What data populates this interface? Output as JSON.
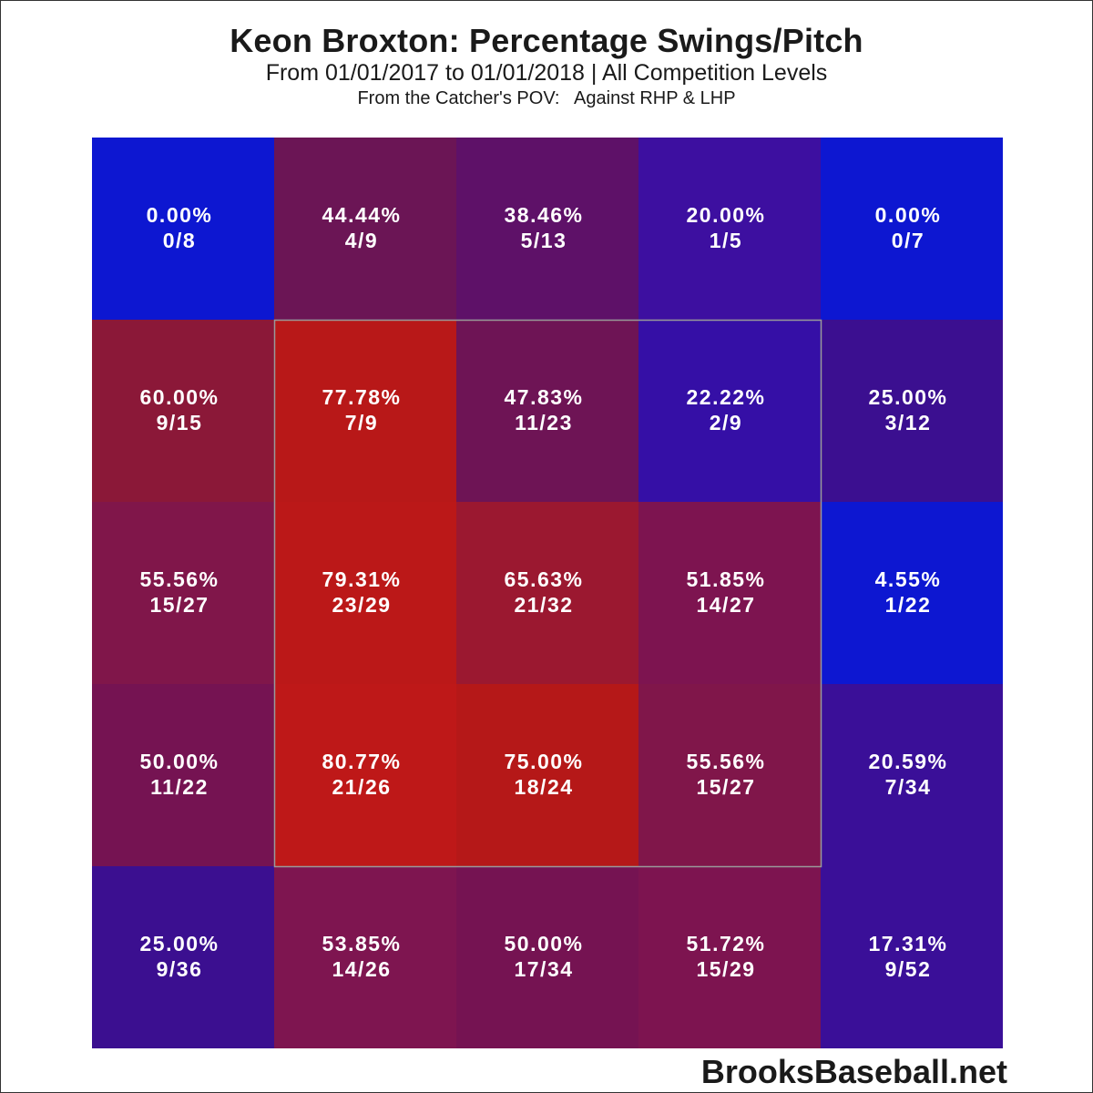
{
  "chart_data": {
    "type": "heatmap",
    "title": "Keon Broxton: Percentage Swings/Pitch",
    "subtitle": "From 01/01/2017 to 01/01/2018 | All Competition Levels",
    "pov_label": "From the Catcher's POV:   Against RHP & LHP",
    "rows": 5,
    "cols": 5,
    "strike_zone": {
      "row_start": 1,
      "row_end": 3,
      "col_start": 1,
      "col_end": 3
    },
    "cells": [
      [
        {
          "pct": "0.00%",
          "frac": "0/8",
          "value": 0.0,
          "color": "#0d17d1"
        },
        {
          "pct": "44.44%",
          "frac": "4/9",
          "value": 44.44,
          "color": "#6b1555"
        },
        {
          "pct": "38.46%",
          "frac": "5/13",
          "value": 38.46,
          "color": "#5e1168"
        },
        {
          "pct": "20.00%",
          "frac": "1/5",
          "value": 20.0,
          "color": "#3d0fa0"
        },
        {
          "pct": "0.00%",
          "frac": "0/7",
          "value": 0.0,
          "color": "#0d17d1"
        }
      ],
      [
        {
          "pct": "60.00%",
          "frac": "9/15",
          "value": 60.0,
          "color": "#8b1838"
        },
        {
          "pct": "77.78%",
          "frac": "7/9",
          "value": 77.78,
          "color": "#b81818"
        },
        {
          "pct": "47.83%",
          "frac": "11/23",
          "value": 47.83,
          "color": "#6e1455"
        },
        {
          "pct": "22.22%",
          "frac": "2/9",
          "value": 22.22,
          "color": "#350fa6"
        },
        {
          "pct": "25.00%",
          "frac": "3/12",
          "value": 25.0,
          "color": "#3b0f90"
        }
      ],
      [
        {
          "pct": "55.56%",
          "frac": "15/27",
          "value": 55.56,
          "color": "#80164a"
        },
        {
          "pct": "79.31%",
          "frac": "23/29",
          "value": 79.31,
          "color": "#bb1818"
        },
        {
          "pct": "65.63%",
          "frac": "21/32",
          "value": 65.63,
          "color": "#9b1830"
        },
        {
          "pct": "51.85%",
          "frac": "14/27",
          "value": 51.85,
          "color": "#7d1450"
        },
        {
          "pct": "4.55%",
          "frac": "1/22",
          "value": 4.55,
          "color": "#0d17d1"
        }
      ],
      [
        {
          "pct": "50.00%",
          "frac": "11/22",
          "value": 50.0,
          "color": "#751352"
        },
        {
          "pct": "80.77%",
          "frac": "21/26",
          "value": 80.77,
          "color": "#be1818"
        },
        {
          "pct": "75.00%",
          "frac": "18/24",
          "value": 75.0,
          "color": "#b51818"
        },
        {
          "pct": "55.56%",
          "frac": "15/27",
          "value": 55.56,
          "color": "#80164a"
        },
        {
          "pct": "20.59%",
          "frac": "7/34",
          "value": 20.59,
          "color": "#3a0f98"
        }
      ],
      [
        {
          "pct": "25.00%",
          "frac": "9/36",
          "value": 25.0,
          "color": "#3b0f90"
        },
        {
          "pct": "53.85%",
          "frac": "14/26",
          "value": 53.85,
          "color": "#7e1550"
        },
        {
          "pct": "50.00%",
          "frac": "17/34",
          "value": 50.0,
          "color": "#751352"
        },
        {
          "pct": "51.72%",
          "frac": "15/29",
          "value": 51.72,
          "color": "#7d1450"
        },
        {
          "pct": "17.31%",
          "frac": "9/52",
          "value": 17.31,
          "color": "#3a0f98"
        }
      ]
    ]
  },
  "watermark": "BrooksBaseball.net"
}
